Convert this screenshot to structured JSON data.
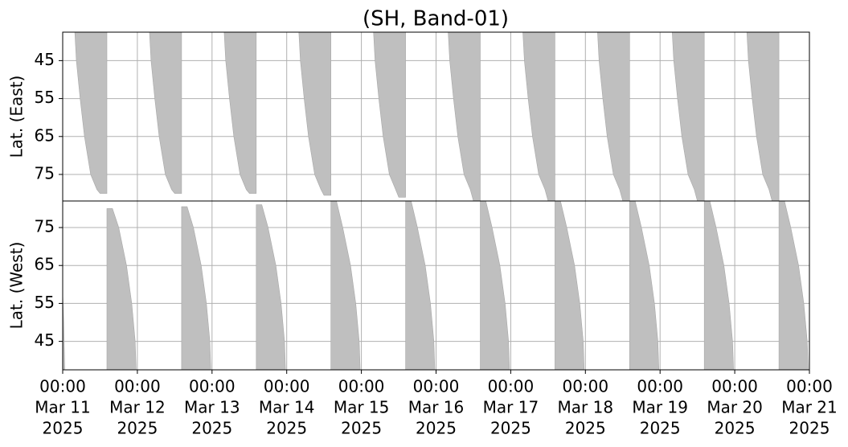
{
  "chart_data": {
    "type": "area",
    "title": "(SH, Band-01)",
    "color": "#bfbfbf",
    "grid": true,
    "xlim": [
      "2025-03-11 00:00",
      "2025-03-21 00:00"
    ],
    "xticks": [
      {
        "value": "2025-03-11 00:00",
        "label": [
          "00:00",
          "Mar 11",
          "2025"
        ]
      },
      {
        "value": "2025-03-12 00:00",
        "label": [
          "00:00",
          "Mar 12",
          "2025"
        ]
      },
      {
        "value": "2025-03-13 00:00",
        "label": [
          "00:00",
          "Mar 13",
          "2025"
        ]
      },
      {
        "value": "2025-03-14 00:00",
        "label": [
          "00:00",
          "Mar 14",
          "2025"
        ]
      },
      {
        "value": "2025-03-15 00:00",
        "label": [
          "00:00",
          "Mar 15",
          "2025"
        ]
      },
      {
        "value": "2025-03-16 00:00",
        "label": [
          "00:00",
          "Mar 16",
          "2025"
        ]
      },
      {
        "value": "2025-03-17 00:00",
        "label": [
          "00:00",
          "Mar 17",
          "2025"
        ]
      },
      {
        "value": "2025-03-18 00:00",
        "label": [
          "00:00",
          "Mar 18",
          "2025"
        ]
      },
      {
        "value": "2025-03-19 00:00",
        "label": [
          "00:00",
          "Mar 19",
          "2025"
        ]
      },
      {
        "value": "2025-03-20 00:00",
        "label": [
          "00:00",
          "Mar 20",
          "2025"
        ]
      },
      {
        "value": "2025-03-21 00:00",
        "label": [
          "00:00",
          "Mar 21",
          "2025"
        ]
      }
    ],
    "panels": [
      {
        "ylabel": "Lat. (East)",
        "ylim": [
          82,
          37.5
        ],
        "yticks": [
          45,
          55,
          65,
          75
        ],
        "bands": [
          {
            "x": [
              "2025-03-11 03:54",
              "2025-03-11 04:24",
              "2025-03-11 05:36",
              "2025-03-11 07:00",
              "2025-03-11 09:00",
              "2025-03-11 11:00",
              "2025-03-11 12:00",
              "2025-03-11 14:12",
              "2025-03-11 14:12"
            ],
            "y": [
              37.5,
              45,
              55,
              65,
              75,
              79,
              80,
              80,
              37.5
            ]
          },
          {
            "x": [
              "2025-03-12 03:54",
              "2025-03-12 04:24",
              "2025-03-12 05:36",
              "2025-03-12 07:00",
              "2025-03-12 09:00",
              "2025-03-12 11:00",
              "2025-03-12 12:00",
              "2025-03-12 14:12",
              "2025-03-12 14:12"
            ],
            "y": [
              37.5,
              45,
              55,
              65,
              75,
              79,
              80,
              80,
              37.5
            ]
          },
          {
            "x": [
              "2025-03-13 03:54",
              "2025-03-13 04:24",
              "2025-03-13 05:36",
              "2025-03-13 07:00",
              "2025-03-13 09:00",
              "2025-03-13 11:00",
              "2025-03-13 12:00",
              "2025-03-13 14:12",
              "2025-03-13 14:12"
            ],
            "y": [
              37.5,
              45,
              55,
              65,
              75,
              79,
              80,
              80,
              37.5
            ]
          },
          {
            "x": [
              "2025-03-14 03:54",
              "2025-03-14 04:24",
              "2025-03-14 05:36",
              "2025-03-14 07:00",
              "2025-03-14 09:00",
              "2025-03-14 11:00",
              "2025-03-14 12:00",
              "2025-03-14 14:12",
              "2025-03-14 14:12"
            ],
            "y": [
              37.5,
              45,
              55,
              65,
              75,
              79,
              80.5,
              80.5,
              37.5
            ]
          },
          {
            "x": [
              "2025-03-15 03:54",
              "2025-03-15 04:24",
              "2025-03-15 05:36",
              "2025-03-15 07:00",
              "2025-03-15 09:00",
              "2025-03-15 11:00",
              "2025-03-15 12:00",
              "2025-03-15 14:12",
              "2025-03-15 14:12"
            ],
            "y": [
              37.5,
              45,
              55,
              65,
              75,
              79,
              81,
              81,
              37.5
            ]
          },
          {
            "x": [
              "2025-03-16 03:54",
              "2025-03-16 04:24",
              "2025-03-16 05:36",
              "2025-03-16 07:00",
              "2025-03-16 09:00",
              "2025-03-16 11:00",
              "2025-03-16 12:00",
              "2025-03-16 14:12",
              "2025-03-16 14:12"
            ],
            "y": [
              37.5,
              45,
              55,
              65,
              75,
              79,
              82,
              82,
              37.5
            ]
          },
          {
            "x": [
              "2025-03-17 03:54",
              "2025-03-17 04:24",
              "2025-03-17 05:36",
              "2025-03-17 07:00",
              "2025-03-17 09:00",
              "2025-03-17 11:00",
              "2025-03-17 12:00",
              "2025-03-17 14:12",
              "2025-03-17 14:12"
            ],
            "y": [
              37.5,
              45,
              55,
              65,
              75,
              79,
              82,
              82,
              37.5
            ]
          },
          {
            "x": [
              "2025-03-18 03:54",
              "2025-03-18 04:24",
              "2025-03-18 05:36",
              "2025-03-18 07:00",
              "2025-03-18 09:00",
              "2025-03-18 11:00",
              "2025-03-18 12:00",
              "2025-03-18 14:12",
              "2025-03-18 14:12"
            ],
            "y": [
              37.5,
              45,
              55,
              65,
              75,
              79,
              82,
              82,
              37.5
            ]
          },
          {
            "x": [
              "2025-03-19 03:54",
              "2025-03-19 04:24",
              "2025-03-19 05:36",
              "2025-03-19 07:00",
              "2025-03-19 09:00",
              "2025-03-19 11:00",
              "2025-03-19 12:00",
              "2025-03-19 14:12",
              "2025-03-19 14:12"
            ],
            "y": [
              37.5,
              45,
              55,
              65,
              75,
              79,
              82,
              82,
              37.5
            ]
          },
          {
            "x": [
              "2025-03-20 03:54",
              "2025-03-20 04:24",
              "2025-03-20 05:36",
              "2025-03-20 07:00",
              "2025-03-20 09:00",
              "2025-03-20 11:00",
              "2025-03-20 12:00",
              "2025-03-20 14:12",
              "2025-03-20 14:12"
            ],
            "y": [
              37.5,
              45,
              55,
              65,
              75,
              79,
              82,
              82,
              37.5
            ]
          }
        ]
      },
      {
        "ylabel": "Lat. (West)",
        "ylim": [
          37.5,
          82
        ],
        "yticks": [
          45,
          55,
          65,
          75
        ],
        "bands": [
          {
            "x": [
              "2025-03-11 00:00",
              "2025-03-11 00:20",
              "2025-03-11 00:40",
              "2025-03-11 00:00"
            ],
            "y": [
              58,
              50,
              37.5,
              37.5
            ]
          },
          {
            "x": [
              "2025-03-11 14:12",
              "2025-03-11 16:00",
              "2025-03-11 18:00",
              "2025-03-11 20:30",
              "2025-03-11 22:12",
              "2025-03-11 23:18",
              "2025-03-11 23:36",
              "2025-03-11 14:12"
            ],
            "y": [
              80,
              80,
              75,
              65,
              55,
              45,
              37.5,
              37.5
            ]
          },
          {
            "x": [
              "2025-03-12 14:12",
              "2025-03-12 16:00",
              "2025-03-12 18:00",
              "2025-03-12 20:30",
              "2025-03-12 22:12",
              "2025-03-12 23:18",
              "2025-03-12 23:36",
              "2025-03-12 14:12"
            ],
            "y": [
              80.5,
              80.5,
              75,
              65,
              55,
              45,
              37.5,
              37.5
            ]
          },
          {
            "x": [
              "2025-03-13 14:12",
              "2025-03-13 16:00",
              "2025-03-13 18:00",
              "2025-03-13 20:30",
              "2025-03-13 22:12",
              "2025-03-13 23:18",
              "2025-03-13 23:36",
              "2025-03-13 14:12"
            ],
            "y": [
              81,
              81,
              75,
              65,
              55,
              45,
              37.5,
              37.5
            ]
          },
          {
            "x": [
              "2025-03-14 14:12",
              "2025-03-14 16:00",
              "2025-03-14 18:00",
              "2025-03-14 20:30",
              "2025-03-14 22:12",
              "2025-03-14 23:18",
              "2025-03-14 23:36",
              "2025-03-14 14:12"
            ],
            "y": [
              82,
              82,
              75,
              65,
              55,
              45,
              37.5,
              37.5
            ]
          },
          {
            "x": [
              "2025-03-15 14:12",
              "2025-03-15 16:00",
              "2025-03-15 18:00",
              "2025-03-15 20:30",
              "2025-03-15 22:12",
              "2025-03-15 23:18",
              "2025-03-15 23:36",
              "2025-03-15 14:12"
            ],
            "y": [
              82,
              82,
              75,
              65,
              55,
              45,
              37.5,
              37.5
            ]
          },
          {
            "x": [
              "2025-03-16 14:12",
              "2025-03-16 16:00",
              "2025-03-16 18:00",
              "2025-03-16 20:30",
              "2025-03-16 22:12",
              "2025-03-16 23:18",
              "2025-03-16 23:36",
              "2025-03-16 14:12"
            ],
            "y": [
              82,
              82,
              75,
              65,
              55,
              45,
              37.5,
              37.5
            ]
          },
          {
            "x": [
              "2025-03-17 14:12",
              "2025-03-17 16:00",
              "2025-03-17 18:00",
              "2025-03-17 20:30",
              "2025-03-17 22:12",
              "2025-03-17 23:18",
              "2025-03-17 23:36",
              "2025-03-17 14:12"
            ],
            "y": [
              82,
              82,
              75,
              65,
              55,
              45,
              37.5,
              37.5
            ]
          },
          {
            "x": [
              "2025-03-18 14:12",
              "2025-03-18 16:00",
              "2025-03-18 18:00",
              "2025-03-18 20:30",
              "2025-03-18 22:12",
              "2025-03-18 23:18",
              "2025-03-18 23:36",
              "2025-03-18 14:12"
            ],
            "y": [
              82,
              82,
              75,
              65,
              55,
              45,
              37.5,
              37.5
            ]
          },
          {
            "x": [
              "2025-03-19 14:12",
              "2025-03-19 16:00",
              "2025-03-19 18:00",
              "2025-03-19 20:30",
              "2025-03-19 22:12",
              "2025-03-19 23:18",
              "2025-03-19 23:36",
              "2025-03-19 14:12"
            ],
            "y": [
              82,
              82,
              75,
              65,
              55,
              45,
              37.5,
              37.5
            ]
          },
          {
            "x": [
              "2025-03-20 14:12",
              "2025-03-20 16:00",
              "2025-03-20 18:00",
              "2025-03-20 20:30",
              "2025-03-20 22:12",
              "2025-03-20 23:18",
              "2025-03-20 23:36",
              "2025-03-20 14:12"
            ],
            "y": [
              82,
              82,
              75,
              65,
              55,
              45,
              37.5,
              37.5
            ]
          }
        ]
      }
    ]
  }
}
